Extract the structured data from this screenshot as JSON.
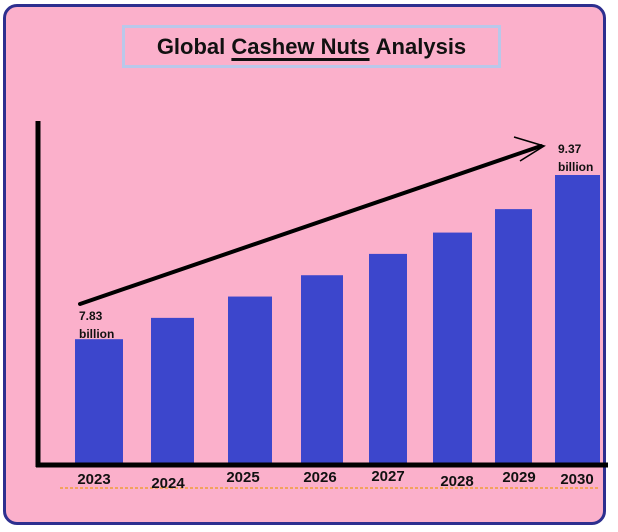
{
  "title": {
    "prefix": "Global",
    "highlight": "Cashew Nuts",
    "suffix": "Analysis"
  },
  "colors": {
    "background": "#fbb0cb",
    "bar": "#3c46cc",
    "border": "#2d2f8f",
    "axis": "#000000"
  },
  "chart_data": {
    "type": "bar",
    "categories": [
      "2023",
      "2024",
      "2025",
      "2026",
      "2027",
      "2028",
      "2029",
      "2030"
    ],
    "values": [
      7.83,
      8.03,
      8.23,
      8.43,
      8.63,
      8.83,
      9.05,
      9.37
    ],
    "ylim": [
      6.65,
      9.85
    ],
    "grid": false,
    "legend": "none",
    "trend_arrow": true,
    "data_labels": [
      {
        "category": "2023",
        "value_text": "7.83",
        "unit_text": "billion"
      },
      {
        "category": "2030",
        "value_text": "9.37",
        "unit_text": "billion"
      }
    ]
  }
}
